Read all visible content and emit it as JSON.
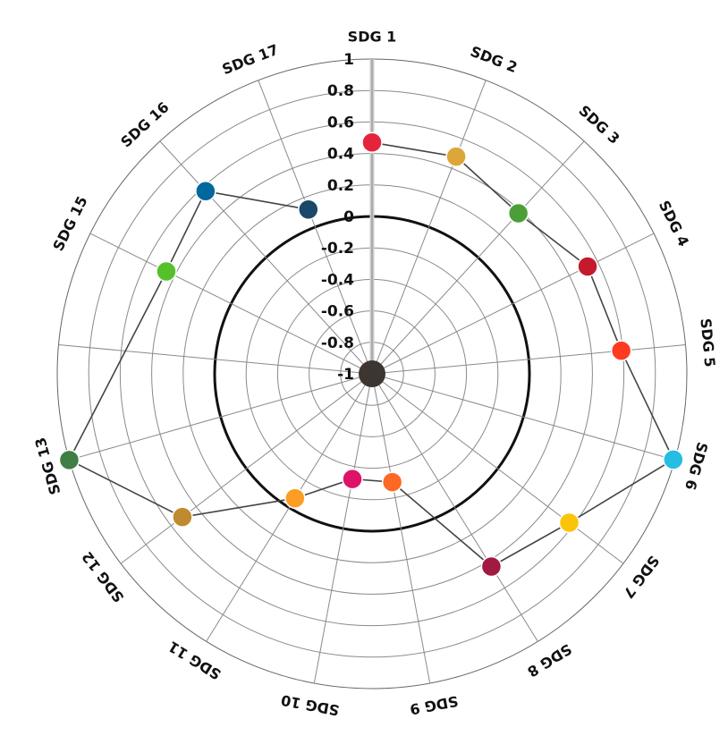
{
  "chart_data": {
    "type": "radar",
    "r_range": [
      -1,
      1
    ],
    "r_ticks": [
      "1",
      "0.8",
      "0.6",
      "0.4",
      "0.2",
      "0",
      "-0.2",
      "-0.4",
      "-0.6",
      "-0.8",
      "-1"
    ],
    "zero_ring": 0,
    "center_dot_color": "#3d3530",
    "categories": [
      {
        "label": "SDG 1",
        "value": 0.47,
        "color": "#e5243b"
      },
      {
        "label": "SDG 2",
        "value": 0.48,
        "color": "#dda63a"
      },
      {
        "label": "SDG 3",
        "value": 0.38,
        "color": "#4c9f38"
      },
      {
        "label": "SDG 4",
        "value": 0.53,
        "color": "#c5192d"
      },
      {
        "label": "SDG 5",
        "value": 0.59,
        "color": "#ff3a21"
      },
      {
        "label": "SDG 6",
        "value": 0.99,
        "color": "#26bde2"
      },
      {
        "label": "SDG 7",
        "value": 0.57,
        "color": "#fcc30b"
      },
      {
        "label": "SDG 8",
        "value": 0.44,
        "color": "#a21942"
      },
      {
        "label": "SDG 9",
        "value": -0.3,
        "color": "#fd6925"
      },
      {
        "label": "SDG 10",
        "value": -0.32,
        "color": "#dd1367"
      },
      {
        "label": "SDG 11",
        "value": -0.07,
        "color": "#fd9d24"
      },
      {
        "label": "SDG 12",
        "value": 0.51,
        "color": "#bf8b2e"
      },
      {
        "label": "SDG 13",
        "value": 1.0,
        "color": "#3f7e44"
      },
      {
        "label": "SDG 15",
        "value": 0.46,
        "color": "#56c02b"
      },
      {
        "label": "SDG 16",
        "value": 0.57,
        "color": "#00689d"
      },
      {
        "label": "SDG 17",
        "value": 0.12,
        "color": "#19486a"
      }
    ],
    "grid": true,
    "line_color": "#444444",
    "spoke_highlight_color": "#cccccc"
  }
}
